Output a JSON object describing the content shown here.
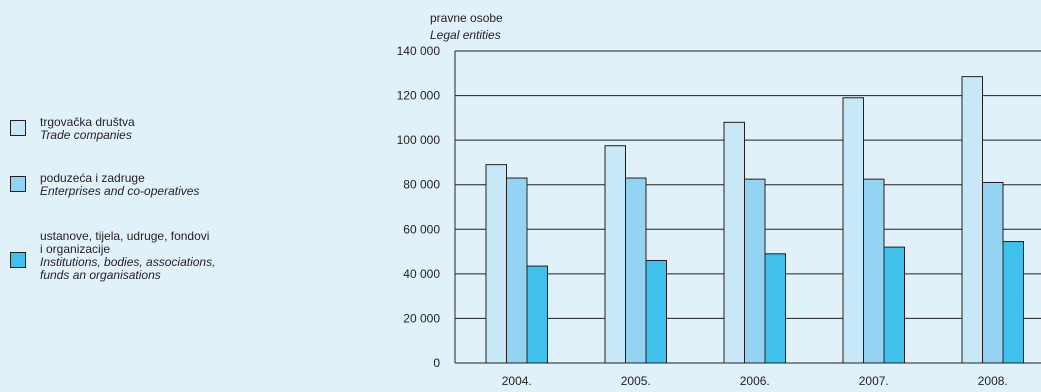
{
  "legend": {
    "items": [
      {
        "hr": "trgovačka društva",
        "en": "Trade companies",
        "color": "#c8e8f8"
      },
      {
        "hr": "poduzeća i zadruge",
        "en": "Enterprises and co-operatives",
        "color": "#94d4f2"
      },
      {
        "hr_lines": [
          "ustanove, tijela, udruge, fondovi",
          "i organizacije"
        ],
        "en_lines": [
          "Institutions, bodies, associations,",
          "funds an organisations"
        ],
        "color": "#3fc1ec"
      }
    ]
  },
  "chart_data": {
    "type": "bar",
    "ylabel": "pravne osobe",
    "ylabel_en": "Legal entities",
    "categories": [
      "2004.",
      "2005.",
      "2006.",
      "2007.",
      "2008."
    ],
    "ylim": [
      0,
      140000
    ],
    "yticks": [
      0,
      20000,
      40000,
      60000,
      80000,
      100000,
      120000,
      140000
    ],
    "ytick_labels": [
      "0",
      "20 000",
      "40 000",
      "60 000",
      "80 000",
      "100 000",
      "120 000",
      "140 000"
    ],
    "grid": true,
    "legend_position": "left",
    "series": [
      {
        "name": "trgovačka društva / Trade companies",
        "color": "#c8e8f8",
        "values": [
          89000,
          97500,
          108000,
          119000,
          128500
        ]
      },
      {
        "name": "poduzeća i zadruge / Enterprises and co-operatives",
        "color": "#94d4f2",
        "values": [
          83000,
          83000,
          82500,
          82500,
          81000
        ]
      },
      {
        "name": "ustanove, tijela, udruge, fondovi i organizacije / Institutions, bodies, associations, funds an organisations",
        "color": "#3fc1ec",
        "values": [
          43500,
          46000,
          49000,
          52000,
          54500
        ]
      }
    ]
  }
}
